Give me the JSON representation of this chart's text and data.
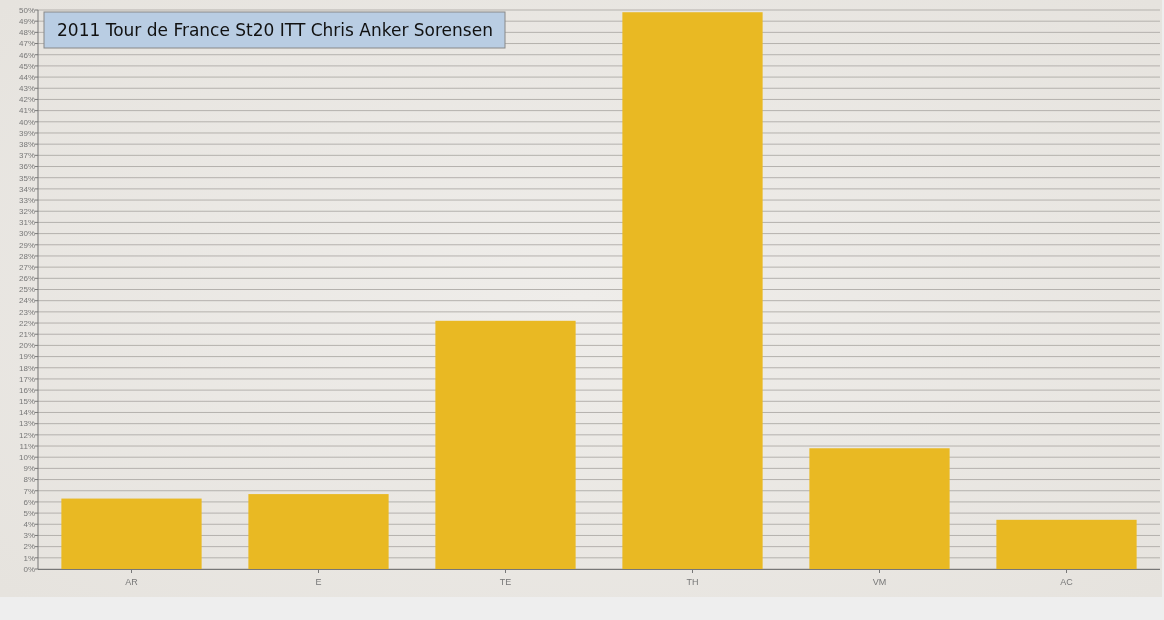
{
  "chart_data": {
    "type": "bar",
    "title": "2011 Tour de France  St20 ITT  Chris Anker Sorensen",
    "categories": [
      "AR",
      "E",
      "TE",
      "TH",
      "VM",
      "AC"
    ],
    "values": [
      6.3,
      6.7,
      22.2,
      49.8,
      10.8,
      4.4
    ],
    "color": "#e9b923",
    "ylim": [
      0,
      50
    ],
    "yticks": [
      {
        "value": 0,
        "label": "0%"
      },
      {
        "value": 1,
        "label": "1%"
      },
      {
        "value": 2,
        "label": "2%"
      },
      {
        "value": 3,
        "label": "3%"
      },
      {
        "value": 4,
        "label": "4%"
      },
      {
        "value": 5,
        "label": "5%"
      },
      {
        "value": 6,
        "label": "6%"
      },
      {
        "value": 7,
        "label": "7%"
      },
      {
        "value": 8,
        "label": "8%"
      },
      {
        "value": 9,
        "label": "9%"
      },
      {
        "value": 10,
        "label": "10%"
      },
      {
        "value": 11,
        "label": "11%"
      },
      {
        "value": 12,
        "label": "12%"
      },
      {
        "value": 13,
        "label": "13%"
      },
      {
        "value": 14,
        "label": "14%"
      },
      {
        "value": 15,
        "label": "15%"
      },
      {
        "value": 16,
        "label": "16%"
      },
      {
        "value": 17,
        "label": "17%"
      },
      {
        "value": 18,
        "label": "18%"
      },
      {
        "value": 19,
        "label": "19%"
      },
      {
        "value": 20,
        "label": "20%"
      },
      {
        "value": 21,
        "label": "21%"
      },
      {
        "value": 22,
        "label": "22%"
      },
      {
        "value": 23,
        "label": "23%"
      },
      {
        "value": 24,
        "label": "24%"
      },
      {
        "value": 25,
        "label": "25%"
      },
      {
        "value": 26,
        "label": "26%"
      },
      {
        "value": 27,
        "label": "27%"
      },
      {
        "value": 28,
        "label": "28%"
      },
      {
        "value": 29,
        "label": "29%"
      },
      {
        "value": 30,
        "label": "30%"
      },
      {
        "value": 31,
        "label": "31%"
      },
      {
        "value": 32,
        "label": "32%"
      },
      {
        "value": 33,
        "label": "33%"
      },
      {
        "value": 34,
        "label": "34%"
      },
      {
        "value": 35,
        "label": "35%"
      },
      {
        "value": 36,
        "label": "36%"
      },
      {
        "value": 37,
        "label": "37%"
      },
      {
        "value": 38,
        "label": "38%"
      },
      {
        "value": 39,
        "label": "39%"
      },
      {
        "value": 40,
        "label": "40%"
      },
      {
        "value": 41,
        "label": "41%"
      },
      {
        "value": 42,
        "label": "42%"
      },
      {
        "value": 43,
        "label": "43%"
      },
      {
        "value": 44,
        "label": "44%"
      },
      {
        "value": 45,
        "label": "45%"
      },
      {
        "value": 46,
        "label": "46%"
      },
      {
        "value": 47,
        "label": "47%"
      },
      {
        "value": 48,
        "label": "48%"
      },
      {
        "value": 49,
        "label": "49%"
      },
      {
        "value": 50,
        "label": "50%"
      }
    ],
    "grid": "y"
  }
}
